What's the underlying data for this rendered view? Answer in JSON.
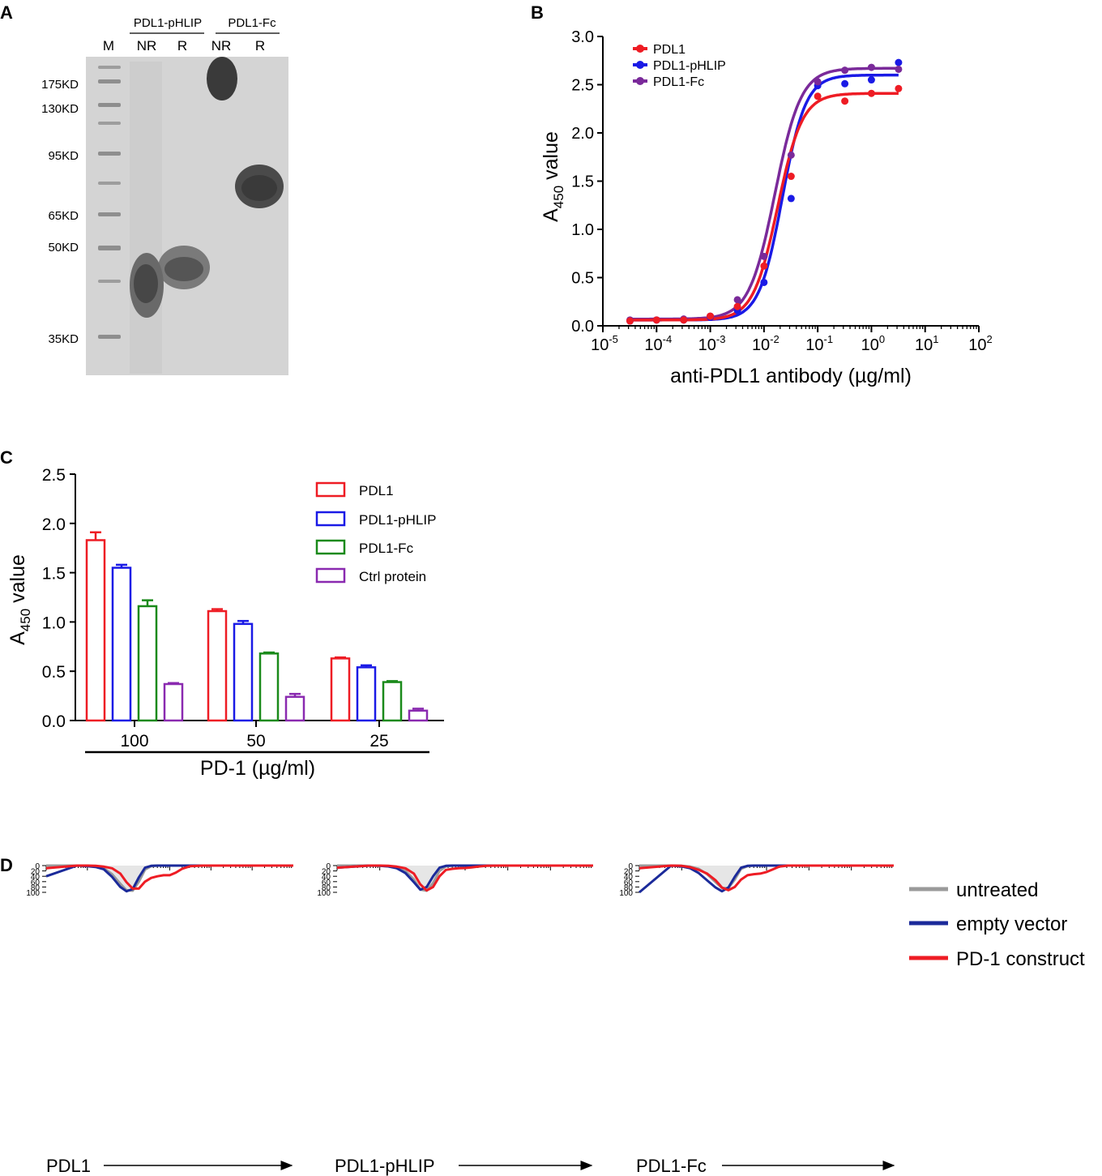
{
  "colors": {
    "red": "#ee1c24",
    "blue": "#1a1ae6",
    "purple": "#7a2a9a",
    "green": "#1a8a1a",
    "violet": "#8a2ab0",
    "grey": "#9a9a9a",
    "navy": "#1b2a9a",
    "gel": "#d3d3d3"
  },
  "panel_a": {
    "letter": "A",
    "group_pdl1_phlip": "PDL1-pHLIP",
    "group_pdl1_fc": "PDL1-Fc",
    "lane_m": "M",
    "lanes": [
      "NR",
      "R",
      "NR",
      "R"
    ],
    "markers": [
      {
        "label": "175KD",
        "kd": 175
      },
      {
        "label": "130KD",
        "kd": 130
      },
      {
        "label": "95KD",
        "kd": 95
      },
      {
        "label": "65KD",
        "kd": 65
      },
      {
        "label": "50KD",
        "kd": 50
      },
      {
        "label": "35KD",
        "kd": 35
      }
    ]
  },
  "panel_b": {
    "letter": "B",
    "ylabel_main": "A",
    "ylabel_sub": "450",
    "ylabel_rest": " value",
    "xlabel": "anti-PDL1 antibody (µg/ml)",
    "ytick_labels": [
      "0.0",
      "0.5",
      "1.0",
      "1.5",
      "2.0",
      "2.5",
      "3.0"
    ],
    "xtick_base": "10",
    "xtick_exps": [
      "-5",
      "-4",
      "-3",
      "-2",
      "-1",
      "0",
      "1",
      "2"
    ],
    "legend": [
      "PDL1",
      "PDL1-pHLIP",
      "PDL1-Fc"
    ]
  },
  "panel_c": {
    "letter": "C",
    "ylabel_main": "A",
    "ylabel_sub": "450",
    "ylabel_rest": " value",
    "ytick_labels": [
      "0.0",
      "0.5",
      "1.0",
      "1.5",
      "2.0",
      "2.5"
    ],
    "xlabel": "PD-1 (µg/ml)",
    "legend": [
      "PDL1",
      "PDL1-pHLIP",
      "PDL1-Fc",
      "Ctrl protein"
    ]
  },
  "panel_d": {
    "letter": "D",
    "ytick_labels": [
      "0",
      "20",
      "40",
      "60",
      "80",
      "100"
    ],
    "xlabels": [
      "PDL1",
      "PDL1-pHLIP",
      "PDL1-Fc"
    ],
    "legend": [
      "untreated",
      "empty vector",
      "PD-1 construct"
    ]
  },
  "chart_data": [
    {
      "panel": "B",
      "type": "line",
      "xscale": "log",
      "xlim": [
        1e-05,
        100
      ],
      "ylim": [
        0,
        3.0
      ],
      "xlabel": "anti-PDL1 antibody (µg/ml)",
      "ylabel": "A450 value",
      "x": [
        3.2e-05,
        0.0001,
        0.00032,
        0.001,
        0.0032,
        0.01,
        0.032,
        0.1,
        0.32,
        1,
        3.2
      ],
      "series": [
        {
          "name": "PDL1",
          "bottom": 0.06,
          "top": 2.41,
          "ec50": 0.018,
          "hill": 1.9,
          "values": [
            0.05,
            0.06,
            0.06,
            0.1,
            0.2,
            0.62,
            1.55,
            2.38,
            2.33,
            2.41,
            2.46
          ]
        },
        {
          "name": "PDL1-pHLIP",
          "bottom": 0.06,
          "top": 2.6,
          "ec50": 0.022,
          "hill": 2.0,
          "values": [
            0.05,
            0.06,
            0.06,
            0.09,
            0.16,
            0.45,
            1.32,
            2.49,
            2.51,
            2.55,
            2.73
          ]
        },
        {
          "name": "PDL1-Fc",
          "bottom": 0.07,
          "top": 2.67,
          "ec50": 0.016,
          "hill": 1.8,
          "values": [
            0.06,
            0.06,
            0.07,
            0.1,
            0.27,
            0.72,
            1.77,
            2.53,
            2.65,
            2.68,
            2.66
          ]
        }
      ]
    },
    {
      "panel": "C",
      "type": "bar",
      "categories": [
        "100",
        "50",
        "25"
      ],
      "xlabel": "PD-1 (µg/ml)",
      "ylabel": "A450 value",
      "ylim": [
        0,
        2.5
      ],
      "series": [
        {
          "name": "PDL1",
          "values": [
            1.83,
            1.11,
            0.63
          ],
          "errors": [
            0.08,
            0.02,
            0.01
          ]
        },
        {
          "name": "PDL1-pHLIP",
          "values": [
            1.55,
            0.98,
            0.54
          ],
          "errors": [
            0.03,
            0.03,
            0.02
          ]
        },
        {
          "name": "PDL1-Fc",
          "values": [
            1.16,
            0.68,
            0.39
          ],
          "errors": [
            0.06,
            0.01,
            0.01
          ]
        },
        {
          "name": "Ctrl protein",
          "values": [
            0.37,
            0.24,
            0.1
          ],
          "errors": [
            0.01,
            0.03,
            0.02
          ]
        }
      ]
    },
    {
      "panel": "D",
      "type": "area",
      "ylim": [
        0,
        100
      ],
      "xscale": "log (fluorescence, decades)",
      "histograms": [
        {
          "title": "PDL1",
          "x": [
            0.0,
            0.75,
            1.0,
            1.2,
            1.4,
            1.6,
            1.8,
            1.95,
            2.1,
            2.25,
            2.4,
            2.55,
            2.7,
            2.85,
            3.0,
            3.15,
            3.3,
            3.5,
            3.8,
            6.0
          ],
          "series": [
            {
              "name": "untreated",
              "values": [
                0,
                0,
                1,
                3,
                10,
                32,
                68,
                92,
                94,
                60,
                15,
                2,
                0,
                0,
                0,
                0,
                0,
                0,
                0,
                0
              ]
            },
            {
              "name": "empty vector",
              "values": [
                40,
                0,
                2,
                5,
                14,
                42,
                80,
                96,
                88,
                44,
                8,
                1,
                0,
                0,
                0,
                0,
                0,
                0,
                0,
                0
              ]
            },
            {
              "name": "PD-1 construct",
              "values": [
                10,
                0,
                0,
                1,
                4,
                10,
                30,
                62,
                86,
                86,
                60,
                46,
                40,
                36,
                36,
                26,
                12,
                2,
                0,
                0
              ]
            }
          ]
        },
        {
          "title": "PDL1-pHLIP",
          "x": [
            0.0,
            0.75,
            1.0,
            1.2,
            1.4,
            1.6,
            1.8,
            1.95,
            2.1,
            2.25,
            2.4,
            2.55,
            2.7,
            2.85,
            3.0,
            3.15,
            3.3,
            3.5,
            3.8,
            6.0
          ],
          "series": [
            {
              "name": "untreated",
              "values": [
                0,
                0,
                1,
                3,
                8,
                20,
                52,
                90,
                94,
                65,
                20,
                3,
                0,
                0,
                0,
                0,
                0,
                0,
                0,
                0
              ]
            },
            {
              "name": "empty vector",
              "values": [
                8,
                0,
                1,
                3,
                10,
                28,
                62,
                90,
                80,
                40,
                8,
                1,
                0,
                0,
                0,
                0,
                0,
                0,
                0,
                0
              ]
            },
            {
              "name": "PD-1 construct",
              "values": [
                8,
                0,
                0,
                1,
                4,
                10,
                30,
                70,
                93,
                80,
                40,
                16,
                12,
                10,
                9,
                7,
                4,
                1,
                0,
                0
              ]
            }
          ]
        },
        {
          "title": "PDL1-Fc",
          "x": [
            0.0,
            0.75,
            1.0,
            1.2,
            1.4,
            1.6,
            1.8,
            1.95,
            2.1,
            2.25,
            2.4,
            2.55,
            2.7,
            2.85,
            3.0,
            3.15,
            3.3,
            3.5,
            3.8,
            6.0
          ],
          "series": [
            {
              "name": "untreated",
              "values": [
                0,
                0,
                1,
                4,
                12,
                32,
                62,
                84,
                84,
                52,
                12,
                2,
                0,
                0,
                0,
                0,
                0,
                0,
                0,
                0
              ]
            },
            {
              "name": "empty vector",
              "values": [
                100,
                0,
                3,
                10,
                28,
                55,
                82,
                96,
                82,
                42,
                8,
                1,
                0,
                0,
                0,
                0,
                0,
                0,
                0,
                0
              ]
            },
            {
              "name": "PD-1 construct",
              "values": [
                10,
                0,
                1,
                6,
                16,
                30,
                55,
                82,
                92,
                80,
                52,
                36,
                32,
                30,
                24,
                14,
                4,
                0,
                0,
                0
              ]
            }
          ]
        }
      ]
    }
  ]
}
